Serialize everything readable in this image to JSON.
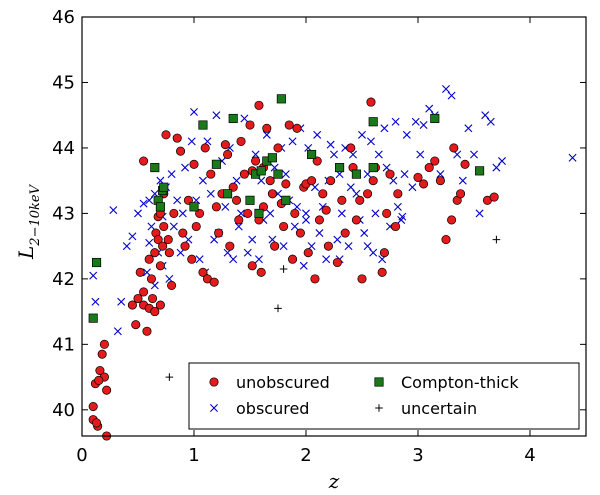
{
  "chart_data": {
    "type": "scatter",
    "xlabel": "z",
    "ylabel_main": "L",
    "ylabel_sub": "2−10keV",
    "xlim": [
      0,
      4.5
    ],
    "ylim": [
      39.6,
      46
    ],
    "x_ticks": [
      "0",
      "1",
      "2",
      "3",
      "4"
    ],
    "y_ticks": [
      "40",
      "41",
      "42",
      "43",
      "44",
      "45",
      "46"
    ],
    "legend": {
      "position": "lower-right"
    },
    "series": [
      {
        "name": "unobscured",
        "marker": "circle",
        "color": "#e41a1c",
        "points": [
          [
            0.1,
            39.85
          ],
          [
            0.12,
            40.4
          ],
          [
            0.1,
            40.05
          ],
          [
            0.14,
            39.75
          ],
          [
            0.16,
            40.6
          ],
          [
            0.18,
            40.85
          ],
          [
            0.2,
            40.5
          ],
          [
            0.2,
            41.0
          ],
          [
            0.22,
            40.3
          ],
          [
            0.22,
            39.6
          ],
          [
            0.15,
            40.45
          ],
          [
            0.13,
            39.8
          ],
          [
            0.45,
            41.6
          ],
          [
            0.48,
            41.3
          ],
          [
            0.5,
            41.7
          ],
          [
            0.52,
            42.1
          ],
          [
            0.55,
            41.8
          ],
          [
            0.55,
            41.6
          ],
          [
            0.58,
            41.2
          ],
          [
            0.6,
            41.55
          ],
          [
            0.6,
            42.3
          ],
          [
            0.62,
            42.0
          ],
          [
            0.63,
            41.7
          ],
          [
            0.65,
            41.5
          ],
          [
            0.65,
            42.4
          ],
          [
            0.66,
            42.7
          ],
          [
            0.68,
            42.6
          ],
          [
            0.68,
            42.95
          ],
          [
            0.7,
            41.6
          ],
          [
            0.7,
            42.2
          ],
          [
            0.7,
            43.0
          ],
          [
            0.72,
            42.5
          ],
          [
            0.73,
            42.8
          ],
          [
            0.73,
            43.3
          ],
          [
            0.75,
            44.2
          ],
          [
            0.77,
            42.6
          ],
          [
            0.78,
            42.4
          ],
          [
            0.8,
            41.9
          ],
          [
            0.82,
            43.0
          ],
          [
            0.85,
            44.15
          ],
          [
            0.88,
            43.95
          ],
          [
            0.55,
            43.8
          ],
          [
            0.9,
            42.7
          ],
          [
            0.92,
            42.5
          ],
          [
            0.95,
            43.2
          ],
          [
            0.98,
            42.3
          ],
          [
            1.0,
            43.75
          ],
          [
            1.02,
            42.8
          ],
          [
            1.05,
            43.0
          ],
          [
            1.08,
            42.1
          ],
          [
            1.1,
            44.0
          ],
          [
            1.12,
            42.0
          ],
          [
            1.15,
            43.6
          ],
          [
            1.18,
            41.95
          ],
          [
            1.2,
            43.1
          ],
          [
            1.22,
            42.7
          ],
          [
            1.25,
            43.3
          ],
          [
            1.28,
            44.05
          ],
          [
            1.3,
            43.9
          ],
          [
            1.32,
            42.5
          ],
          [
            1.35,
            43.4
          ],
          [
            1.38,
            43.2
          ],
          [
            1.4,
            42.9
          ],
          [
            1.42,
            44.1
          ],
          [
            1.45,
            43.6
          ],
          [
            1.48,
            43.0
          ],
          [
            1.5,
            44.35
          ],
          [
            1.52,
            42.2
          ],
          [
            1.55,
            43.8
          ],
          [
            1.58,
            42.9
          ],
          [
            1.6,
            42.1
          ],
          [
            1.62,
            43.1
          ],
          [
            1.65,
            44.3
          ],
          [
            1.68,
            43.5
          ],
          [
            1.7,
            43.3
          ],
          [
            1.72,
            42.5
          ],
          [
            1.75,
            44.0
          ],
          [
            1.78,
            43.15
          ],
          [
            1.8,
            42.8
          ],
          [
            1.82,
            43.45
          ],
          [
            1.85,
            44.35
          ],
          [
            1.88,
            42.3
          ],
          [
            1.9,
            43.0
          ],
          [
            1.92,
            44.3
          ],
          [
            1.95,
            42.7
          ],
          [
            1.98,
            43.4
          ],
          [
            2.0,
            43.45
          ],
          [
            2.02,
            42.4
          ],
          [
            2.05,
            43.5
          ],
          [
            2.08,
            42.0
          ],
          [
            2.1,
            43.8
          ],
          [
            2.12,
            42.9
          ],
          [
            2.15,
            43.3
          ],
          [
            2.18,
            43.05
          ],
          [
            1.58,
            44.65
          ],
          [
            1.52,
            43.65
          ],
          [
            1.62,
            43.7
          ],
          [
            2.2,
            42.5
          ],
          [
            2.22,
            43.5
          ],
          [
            2.28,
            42.25
          ],
          [
            2.32,
            43.2
          ],
          [
            2.35,
            42.7
          ],
          [
            2.4,
            44.0
          ],
          [
            2.42,
            43.7
          ],
          [
            2.45,
            42.9
          ],
          [
            2.48,
            43.2
          ],
          [
            2.5,
            42.0
          ],
          [
            2.55,
            43.3
          ],
          [
            2.58,
            44.7
          ],
          [
            2.6,
            43.5
          ],
          [
            2.62,
            43.7
          ],
          [
            2.68,
            42.1
          ],
          [
            2.7,
            42.4
          ],
          [
            2.72,
            43.0
          ],
          [
            2.75,
            43.6
          ],
          [
            2.8,
            42.8
          ],
          [
            2.82,
            43.3
          ],
          [
            3.0,
            43.55
          ],
          [
            3.05,
            43.45
          ],
          [
            3.1,
            43.7
          ],
          [
            3.15,
            43.8
          ],
          [
            3.2,
            43.5
          ],
          [
            3.25,
            42.6
          ],
          [
            3.3,
            42.9
          ],
          [
            3.32,
            44.0
          ],
          [
            3.35,
            43.2
          ],
          [
            3.38,
            43.3
          ],
          [
            3.42,
            43.75
          ],
          [
            3.62,
            43.2
          ],
          [
            3.68,
            43.25
          ]
        ]
      },
      {
        "name": "obscured",
        "marker": "x",
        "color": "#0000cc",
        "points": [
          [
            0.1,
            42.05
          ],
          [
            0.12,
            41.65
          ],
          [
            0.28,
            43.05
          ],
          [
            0.32,
            41.2
          ],
          [
            0.35,
            41.65
          ],
          [
            0.4,
            42.5
          ],
          [
            0.45,
            42.65
          ],
          [
            0.5,
            43.0
          ],
          [
            0.55,
            43.15
          ],
          [
            0.58,
            42.1
          ],
          [
            0.6,
            43.2
          ],
          [
            0.6,
            42.55
          ],
          [
            0.62,
            42.8
          ],
          [
            0.65,
            43.3
          ],
          [
            0.65,
            41.9
          ],
          [
            0.68,
            42.4
          ],
          [
            0.7,
            43.5
          ],
          [
            0.72,
            42.95
          ],
          [
            0.72,
            42.2
          ],
          [
            0.75,
            43.4
          ],
          [
            0.78,
            42.0
          ],
          [
            0.8,
            43.6
          ],
          [
            0.82,
            42.8
          ],
          [
            0.85,
            43.2
          ],
          [
            0.88,
            42.4
          ],
          [
            0.9,
            43.0
          ],
          [
            0.92,
            43.7
          ],
          [
            0.95,
            42.6
          ],
          [
            0.98,
            44.1
          ],
          [
            1.0,
            44.55
          ],
          [
            1.02,
            43.2
          ],
          [
            1.05,
            42.3
          ],
          [
            1.08,
            43.5
          ],
          [
            1.1,
            42.1
          ],
          [
            1.12,
            44.1
          ],
          [
            1.15,
            43.3
          ],
          [
            1.18,
            42.6
          ],
          [
            1.2,
            44.5
          ],
          [
            1.22,
            42.7
          ],
          [
            1.25,
            43.8
          ],
          [
            1.28,
            43.1
          ],
          [
            1.3,
            42.4
          ],
          [
            1.32,
            44.0
          ],
          [
            1.35,
            42.3
          ],
          [
            1.38,
            43.5
          ],
          [
            1.4,
            42.8
          ],
          [
            1.42,
            43.0
          ],
          [
            1.45,
            44.45
          ],
          [
            1.48,
            42.4
          ],
          [
            1.5,
            43.2
          ],
          [
            1.52,
            42.6
          ],
          [
            1.55,
            43.9
          ],
          [
            1.58,
            42.3
          ],
          [
            1.6,
            43.5
          ],
          [
            1.62,
            42.9
          ],
          [
            1.65,
            44.2
          ],
          [
            1.68,
            43.0
          ],
          [
            1.7,
            42.6
          ],
          [
            1.72,
            43.7
          ],
          [
            1.75,
            43.3
          ],
          [
            1.78,
            44.0
          ],
          [
            1.8,
            42.5
          ],
          [
            1.82,
            43.6
          ],
          [
            1.85,
            43.2
          ],
          [
            1.88,
            44.1
          ],
          [
            1.9,
            42.8
          ],
          [
            1.92,
            43.1
          ],
          [
            1.95,
            44.3
          ],
          [
            1.98,
            42.2
          ],
          [
            2.0,
            43.0
          ],
          [
            2.02,
            44.0
          ],
          [
            2.05,
            42.5
          ],
          [
            2.08,
            43.4
          ],
          [
            2.1,
            44.2
          ],
          [
            2.12,
            42.7
          ],
          [
            2.15,
            43.1
          ],
          [
            2.18,
            42.3
          ],
          [
            2.2,
            43.5
          ],
          [
            2.22,
            44.05
          ],
          [
            2.25,
            43.9
          ],
          [
            2.28,
            42.6
          ],
          [
            2.3,
            43.6
          ],
          [
            2.32,
            43.0
          ],
          [
            2.35,
            44.0
          ],
          [
            2.38,
            42.5
          ],
          [
            2.4,
            43.4
          ],
          [
            2.42,
            43.9
          ],
          [
            2.45,
            43.3
          ],
          [
            2.48,
            42.9
          ],
          [
            2.5,
            44.2
          ],
          [
            2.52,
            42.7
          ],
          [
            2.55,
            43.6
          ],
          [
            2.58,
            44.1
          ],
          [
            2.6,
            42.4
          ],
          [
            2.62,
            43.0
          ],
          [
            2.65,
            43.9
          ],
          [
            2.68,
            42.3
          ],
          [
            2.7,
            44.3
          ],
          [
            2.72,
            43.7
          ],
          [
            2.75,
            42.8
          ],
          [
            2.78,
            43.5
          ],
          [
            2.8,
            44.4
          ],
          [
            2.82,
            43.1
          ],
          [
            2.85,
            42.9
          ],
          [
            2.88,
            43.6
          ],
          [
            2.9,
            44.2
          ],
          [
            2.95,
            43.4
          ],
          [
            2.98,
            44.4
          ],
          [
            3.02,
            43.9
          ],
          [
            3.05,
            44.35
          ],
          [
            3.1,
            44.6
          ],
          [
            3.15,
            44.5
          ],
          [
            3.2,
            43.6
          ],
          [
            3.25,
            44.9
          ],
          [
            3.3,
            44.8
          ],
          [
            3.35,
            43.9
          ],
          [
            3.4,
            43.5
          ],
          [
            3.45,
            44.3
          ],
          [
            3.5,
            43.9
          ],
          [
            3.55,
            43.0
          ],
          [
            3.6,
            44.5
          ],
          [
            3.65,
            44.4
          ],
          [
            3.7,
            43.7
          ],
          [
            3.75,
            43.8
          ],
          [
            4.38,
            43.85
          ],
          [
            2.0,
            42.9
          ],
          [
            2.3,
            42.3
          ],
          [
            2.55,
            42.5
          ],
          [
            2.86,
            42.95
          ]
        ]
      },
      {
        "name": "Compton-thick",
        "marker": "square",
        "color": "#1a7a1a",
        "points": [
          [
            0.1,
            41.4
          ],
          [
            0.13,
            42.25
          ],
          [
            0.65,
            43.7
          ],
          [
            0.68,
            43.2
          ],
          [
            0.7,
            43.1
          ],
          [
            0.72,
            43.35
          ],
          [
            0.73,
            43.4
          ],
          [
            1.0,
            43.1
          ],
          [
            1.08,
            44.35
          ],
          [
            1.2,
            43.75
          ],
          [
            1.3,
            43.3
          ],
          [
            1.35,
            44.45
          ],
          [
            1.5,
            43.2
          ],
          [
            1.55,
            43.6
          ],
          [
            1.58,
            43.0
          ],
          [
            1.6,
            43.65
          ],
          [
            1.65,
            43.8
          ],
          [
            1.7,
            43.85
          ],
          [
            1.75,
            43.6
          ],
          [
            1.78,
            44.75
          ],
          [
            1.82,
            43.2
          ],
          [
            2.05,
            43.9
          ],
          [
            2.3,
            43.7
          ],
          [
            2.45,
            43.6
          ],
          [
            2.6,
            44.4
          ],
          [
            2.6,
            43.7
          ],
          [
            3.15,
            44.45
          ],
          [
            3.55,
            43.65
          ]
        ]
      },
      {
        "name": "uncertain",
        "marker": "plus",
        "color": "#000000",
        "points": [
          [
            0.78,
            40.5
          ],
          [
            1.75,
            41.55
          ],
          [
            1.8,
            42.15
          ],
          [
            3.7,
            42.6
          ]
        ]
      }
    ]
  }
}
